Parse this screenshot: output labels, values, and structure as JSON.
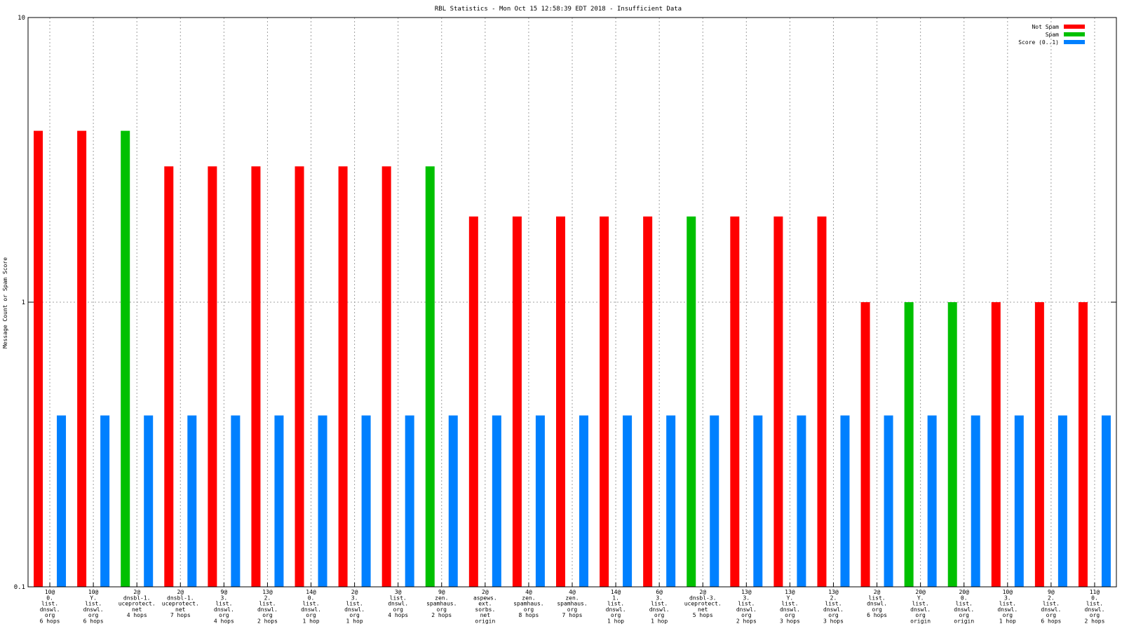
{
  "chart_data": {
    "type": "bar",
    "title": "RBL Statistics - Mon Oct 15 12:58:39 EDT 2018 - Insufficient Data",
    "xlabel": "",
    "ylabel": "Message Count or Spam Score",
    "yscale": "log",
    "ylim": [
      0.1,
      10
    ],
    "yticks": [
      "0.1",
      "1",
      "10"
    ],
    "grid": true,
    "legend_position": "top-right",
    "colors": {
      "not_spam": "#ff0000",
      "spam": "#00c000",
      "score": "#0080ff"
    },
    "categories": [
      [
        "10@",
        "0.",
        "list.",
        "dnswl.",
        "org",
        "6 hops"
      ],
      [
        "10@",
        "Y.",
        "list.",
        "dnswl.",
        "org",
        "6 hops"
      ],
      [
        "2@",
        "dnsbl-1.",
        "uceprotect.",
        "net",
        "4 hops"
      ],
      [
        "2@",
        "dnsbl-1.",
        "uceprotect.",
        "net",
        "7 hops"
      ],
      [
        "9@",
        "3.",
        "list.",
        "dnswl.",
        "org",
        "4 hops"
      ],
      [
        "13@",
        "2.",
        "list.",
        "dnswl.",
        "org",
        "2 hops"
      ],
      [
        "14@",
        "0.",
        "list.",
        "dnswl.",
        "org",
        "1 hop"
      ],
      [
        "2@",
        "3.",
        "list.",
        "dnswl.",
        "org",
        "1 hop"
      ],
      [
        "3@",
        "list.",
        "dnswl.",
        "org",
        "4 hops"
      ],
      [
        "9@",
        "zen.",
        "spamhaus.",
        "org",
        "2 hops"
      ],
      [
        "2@",
        "aspews.",
        "ext.",
        "sorbs.",
        "net",
        "origin"
      ],
      [
        "4@",
        "zen.",
        "spamhaus.",
        "org",
        "8 hops"
      ],
      [
        "4@",
        "zen.",
        "spamhaus.",
        "org",
        "7 hops"
      ],
      [
        "14@",
        "1.",
        "list.",
        "dnswl.",
        "org",
        "1 hop"
      ],
      [
        "6@",
        "3.",
        "list.",
        "dnswl.",
        "org",
        "1 hop"
      ],
      [
        "2@",
        "dnsbl-3.",
        "uceprotect.",
        "net",
        "5 hops"
      ],
      [
        "13@",
        "3.",
        "list.",
        "dnswl.",
        "org",
        "2 hops"
      ],
      [
        "13@",
        "Y.",
        "list.",
        "dnswl.",
        "org",
        "3 hops"
      ],
      [
        "13@",
        "2.",
        "list.",
        "dnswl.",
        "org",
        "3 hops"
      ],
      [
        "2@",
        "list.",
        "dnswl.",
        "org",
        "6 hops"
      ],
      [
        "20@",
        "Y.",
        "list.",
        "dnswl.",
        "org",
        "origin"
      ],
      [
        "20@",
        "0.",
        "list.",
        "dnswl.",
        "org",
        "origin"
      ],
      [
        "10@",
        "3.",
        "list.",
        "dnswl.",
        "org",
        "1 hop"
      ],
      [
        "9@",
        "2.",
        "list.",
        "dnswl.",
        "org",
        "6 hops"
      ],
      [
        "11@",
        "0.",
        "list.",
        "dnswl.",
        "org",
        "2 hops"
      ]
    ],
    "series": [
      {
        "name": "Not Spam",
        "key": "not_spam",
        "values": [
          4,
          4,
          null,
          3,
          3,
          3,
          3,
          3,
          3,
          null,
          2,
          2,
          2,
          2,
          2,
          null,
          2,
          2,
          2,
          1,
          null,
          null,
          1,
          1,
          1
        ]
      },
      {
        "name": "Spam",
        "key": "spam",
        "values": [
          null,
          null,
          4,
          null,
          null,
          null,
          null,
          null,
          null,
          3,
          null,
          null,
          null,
          null,
          null,
          2,
          null,
          null,
          null,
          null,
          1,
          1,
          null,
          null,
          null
        ]
      },
      {
        "name": "Score (0..1)",
        "key": "score",
        "values": [
          0.4,
          0.4,
          0.4,
          0.4,
          0.4,
          0.4,
          0.4,
          0.4,
          0.4,
          0.4,
          0.4,
          0.4,
          0.4,
          0.4,
          0.4,
          0.4,
          0.4,
          0.4,
          0.4,
          0.4,
          0.4,
          0.4,
          0.4,
          0.4,
          0.4
        ]
      }
    ]
  }
}
